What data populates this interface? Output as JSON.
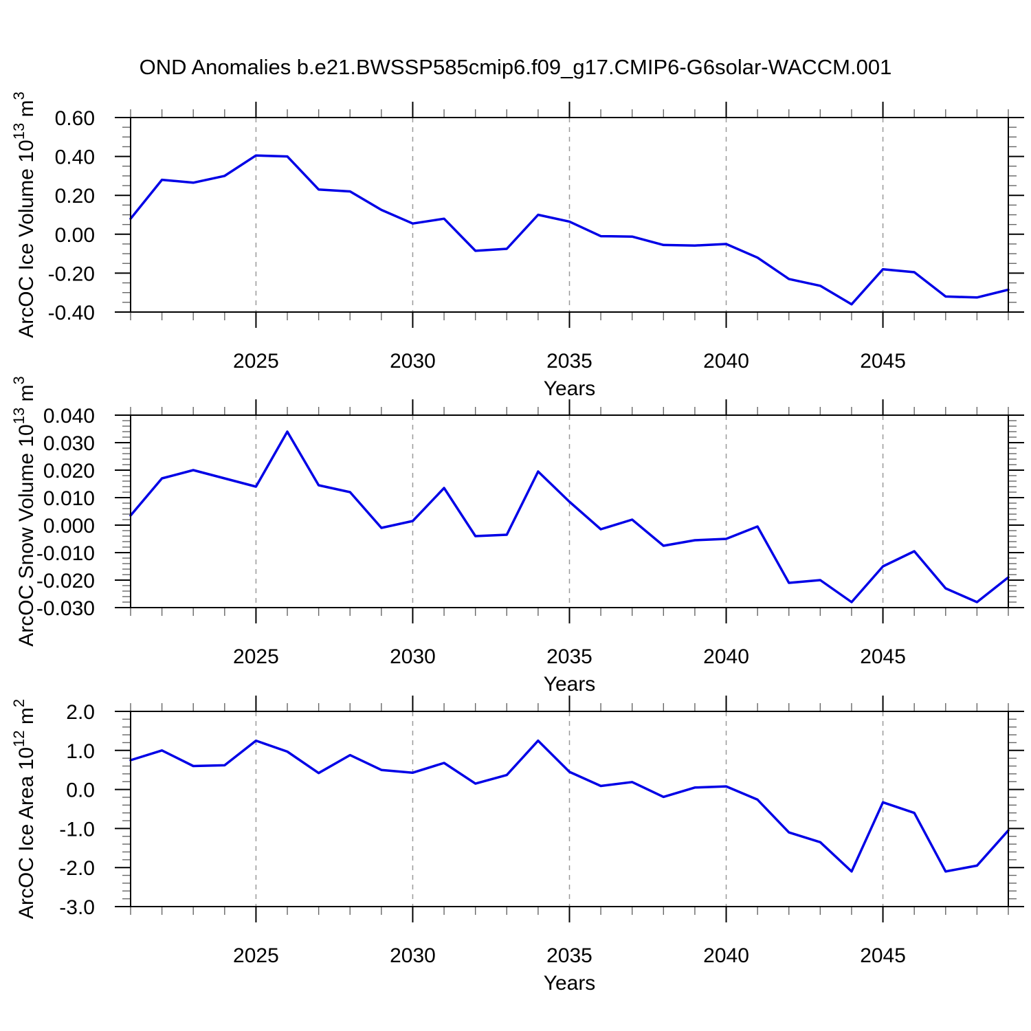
{
  "title": "OND Anomalies b.e21.BWSSP585cmip6.f09_g17.CMIP6-G6solar-WACCM.001",
  "style": {
    "line_color": "#0000E6",
    "grid_color": "#999999",
    "minor_tick_color": "#666666",
    "axis_color": "#000000",
    "text_color": "#000000",
    "background": "#ffffff"
  },
  "chart_data": [
    {
      "id": "ice_volume",
      "type": "line",
      "ylabel": "ArcOC Ice Volume 10^13 m^3",
      "ylabel_parts": [
        {
          "t": "ArcOC Ice Volume 10",
          "sup": false
        },
        {
          "t": "13",
          "sup": true
        },
        {
          "t": " m",
          "sup": false
        },
        {
          "t": "3",
          "sup": true
        }
      ],
      "xlabel": "Years",
      "xlim": [
        2021,
        2049
      ],
      "ylim": [
        -0.4,
        0.6
      ],
      "yticks": [
        0.6,
        0.4,
        0.2,
        0.0,
        -0.2,
        -0.4
      ],
      "ytick_labels": [
        "0.60",
        "0.40",
        "0.20",
        "0.00",
        "-0.20",
        "-0.40"
      ],
      "yminor_step": 0.05,
      "xticks": [
        2025,
        2030,
        2035,
        2040,
        2045
      ],
      "xminor_step": 1,
      "grid": "vertical-dashed",
      "line_color": "#0000E6",
      "x": [
        2021,
        2022,
        2023,
        2024,
        2025,
        2026,
        2027,
        2028,
        2029,
        2030,
        2031,
        2032,
        2033,
        2034,
        2035,
        2036,
        2037,
        2038,
        2039,
        2040,
        2041,
        2042,
        2043,
        2044,
        2045,
        2046,
        2047,
        2048,
        2049
      ],
      "values": [
        0.08,
        0.28,
        0.265,
        0.3,
        0.405,
        0.4,
        0.23,
        0.22,
        0.125,
        0.055,
        0.08,
        -0.085,
        -0.075,
        0.1,
        0.065,
        -0.01,
        -0.012,
        -0.055,
        -0.058,
        -0.05,
        -0.12,
        -0.23,
        -0.265,
        -0.36,
        -0.18,
        -0.195,
        -0.32,
        -0.325,
        -0.285
      ]
    },
    {
      "id": "snow_volume",
      "type": "line",
      "ylabel": "ArcOC Snow Volume 10^13 m^3",
      "ylabel_parts": [
        {
          "t": "ArcOC Snow Volume 10",
          "sup": false
        },
        {
          "t": "13",
          "sup": true
        },
        {
          "t": " m",
          "sup": false
        },
        {
          "t": "3",
          "sup": true
        }
      ],
      "xlabel": "Years",
      "xlim": [
        2021,
        2049
      ],
      "ylim": [
        -0.03,
        0.04
      ],
      "yticks": [
        0.04,
        0.03,
        0.02,
        0.01,
        0.0,
        -0.01,
        -0.02,
        -0.03
      ],
      "ytick_labels": [
        "0.040",
        "0.030",
        "0.020",
        "0.010",
        "0.000",
        "-0.010",
        "-0.020",
        "-0.030"
      ],
      "yminor_step": 0.002,
      "xticks": [
        2025,
        2030,
        2035,
        2040,
        2045
      ],
      "xminor_step": 1,
      "grid": "vertical-dashed",
      "line_color": "#0000E6",
      "x": [
        2021,
        2022,
        2023,
        2024,
        2025,
        2026,
        2027,
        2028,
        2029,
        2030,
        2031,
        2032,
        2033,
        2034,
        2035,
        2036,
        2037,
        2038,
        2039,
        2040,
        2041,
        2042,
        2043,
        2044,
        2045,
        2046,
        2047,
        2048,
        2049
      ],
      "values": [
        0.0035,
        0.017,
        0.02,
        0.017,
        0.014,
        0.034,
        0.0145,
        0.012,
        -0.001,
        0.0015,
        0.0135,
        -0.004,
        -0.0035,
        0.0195,
        0.0085,
        -0.0015,
        0.002,
        -0.0075,
        -0.0055,
        -0.005,
        -0.0005,
        -0.021,
        -0.02,
        -0.028,
        -0.015,
        -0.0095,
        -0.023,
        -0.028,
        -0.019
      ]
    },
    {
      "id": "ice_area",
      "type": "line",
      "ylabel": "ArcOC Ice Area 10^12 m^2",
      "ylabel_parts": [
        {
          "t": "ArcOC Ice Area 10",
          "sup": false
        },
        {
          "t": "12",
          "sup": true
        },
        {
          "t": " m",
          "sup": false
        },
        {
          "t": "2",
          "sup": true
        }
      ],
      "xlabel": "Years",
      "xlim": [
        2021,
        2049
      ],
      "ylim": [
        -3.0,
        2.0
      ],
      "yticks": [
        2.0,
        1.0,
        0.0,
        -1.0,
        -2.0,
        -3.0
      ],
      "ytick_labels": [
        "2.0",
        "1.0",
        "0.0",
        "-1.0",
        "-2.0",
        "-3.0"
      ],
      "yminor_step": 0.2,
      "xticks": [
        2025,
        2030,
        2035,
        2040,
        2045
      ],
      "xminor_step": 1,
      "grid": "vertical-dashed",
      "line_color": "#0000E6",
      "x": [
        2021,
        2022,
        2023,
        2024,
        2025,
        2026,
        2027,
        2028,
        2029,
        2030,
        2031,
        2032,
        2033,
        2034,
        2035,
        2036,
        2037,
        2038,
        2039,
        2040,
        2041,
        2042,
        2043,
        2044,
        2045,
        2046,
        2047,
        2048,
        2049
      ],
      "values": [
        0.75,
        1.0,
        0.6,
        0.62,
        1.25,
        0.97,
        0.42,
        0.88,
        0.5,
        0.43,
        0.68,
        0.15,
        0.37,
        1.25,
        0.45,
        0.09,
        0.19,
        -0.19,
        0.05,
        0.08,
        -0.26,
        -1.1,
        -1.35,
        -2.1,
        -0.33,
        -0.6,
        -2.1,
        -1.95,
        -1.05
      ]
    }
  ]
}
